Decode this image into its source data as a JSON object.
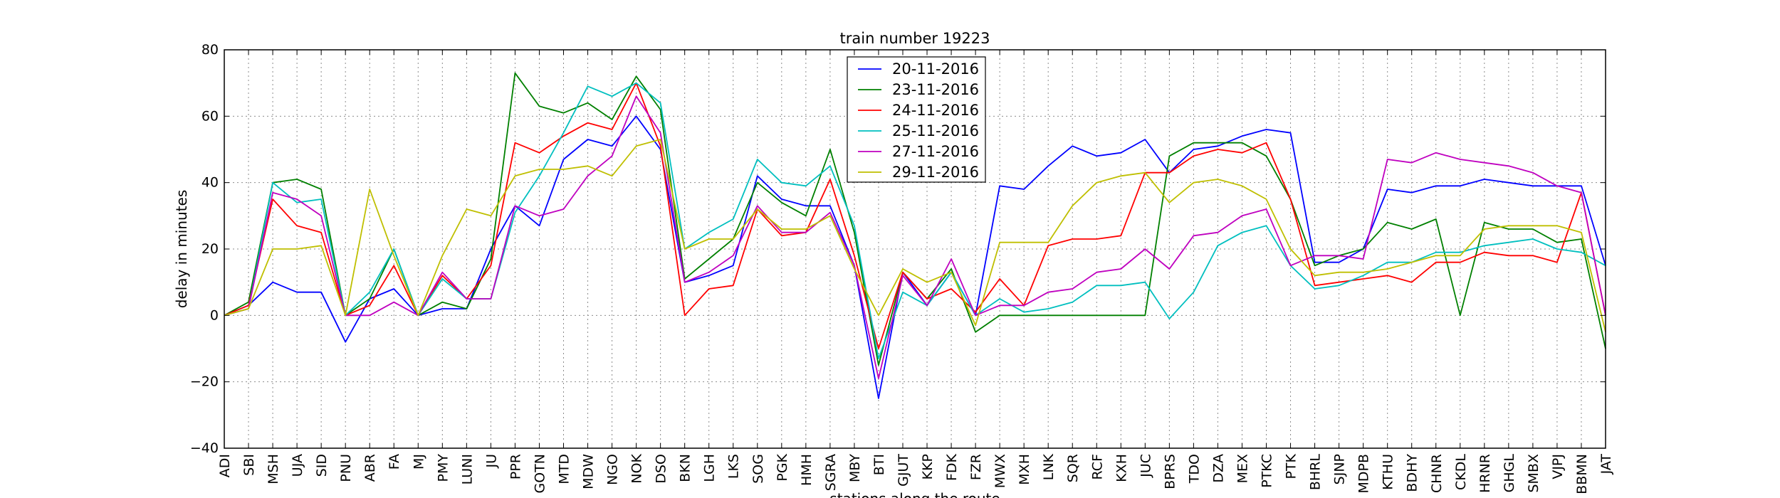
{
  "chart_data": {
    "type": "line",
    "title": "train number 19223",
    "xlabel": "stations along the route",
    "ylabel": "delay in minutes",
    "ylim": [
      -40,
      80
    ],
    "yticks": [
      -40,
      -20,
      0,
      20,
      40,
      60,
      80
    ],
    "ytick_labels": [
      "−40",
      "−20",
      "0",
      "20",
      "40",
      "60",
      "80"
    ],
    "grid": true,
    "legend_position": "top-center",
    "categories": [
      "ADI",
      "SBI",
      "MSH",
      "UJA",
      "SID",
      "PNU",
      "ABR",
      "FA",
      "MJ",
      "PMY",
      "LUNI",
      "JU",
      "PPR",
      "GOTN",
      "MTD",
      "MDW",
      "NGO",
      "NOK",
      "DSO",
      "BKN",
      "LGH",
      "LKS",
      "SOG",
      "PGK",
      "HMH",
      "SGRA",
      "MBY",
      "BTI",
      "GJUT",
      "KKP",
      "FDK",
      "FZR",
      "MWX",
      "MXH",
      "LNK",
      "SQR",
      "RCF",
      "KXH",
      "JUC",
      "BPRS",
      "TDO",
      "DZA",
      "MEX",
      "PTKC",
      "PTK",
      "BHRL",
      "SJNP",
      "MDPB",
      "KTHU",
      "BDHY",
      "CHNR",
      "CKDL",
      "HRNR",
      "GHGL",
      "SMBX",
      "VJPJ",
      "BBMN",
      "JAT"
    ],
    "series": [
      {
        "name": "20-11-2016",
        "color": "#0000ff",
        "values": [
          0,
          3,
          10,
          7,
          7,
          -8,
          5,
          8,
          0,
          2,
          2,
          20,
          33,
          27,
          47,
          53,
          51,
          60,
          50,
          10,
          12,
          15,
          42,
          35,
          33,
          33,
          15,
          -25,
          13,
          3,
          13,
          0,
          39,
          38,
          45,
          51,
          48,
          49,
          53,
          43,
          50,
          51,
          54,
          56,
          55,
          16,
          16,
          20,
          38,
          37,
          39,
          39,
          41,
          40,
          39,
          39,
          39,
          15
        ]
      },
      {
        "name": "23-11-2016",
        "color": "#008000",
        "values": [
          0,
          4,
          40,
          41,
          38,
          0,
          5,
          20,
          0,
          4,
          2,
          17,
          73,
          63,
          61,
          64,
          59,
          72,
          62,
          11,
          17,
          23,
          40,
          34,
          30,
          50,
          25,
          -15,
          13,
          5,
          14,
          -5,
          0,
          0,
          0,
          0,
          0,
          0,
          0,
          48,
          52,
          52,
          52,
          48,
          35,
          15,
          18,
          20,
          28,
          26,
          29,
          0,
          28,
          26,
          26,
          22,
          23,
          -10
        ]
      },
      {
        "name": "24-11-2016",
        "color": "#ff0000",
        "values": [
          0,
          3,
          35,
          27,
          25,
          0,
          3,
          15,
          0,
          12,
          5,
          15,
          52,
          49,
          54,
          58,
          56,
          70,
          51,
          0,
          8,
          9,
          32,
          24,
          25,
          41,
          18,
          -10,
          13,
          5,
          8,
          1,
          11,
          3,
          21,
          23,
          23,
          24,
          43,
          43,
          48,
          50,
          49,
          52,
          35,
          9,
          10,
          11,
          12,
          10,
          16,
          16,
          19,
          18,
          18,
          16,
          37,
          0
        ]
      },
      {
        "name": "25-11-2016",
        "color": "#00bfbf",
        "values": [
          0,
          2,
          40,
          34,
          35,
          0,
          7,
          20,
          0,
          11,
          5,
          5,
          31,
          42,
          55,
          69,
          66,
          70,
          64,
          20,
          25,
          29,
          47,
          40,
          39,
          45,
          27,
          -13,
          7,
          3,
          13,
          0,
          5,
          1,
          2,
          4,
          9,
          9,
          10,
          -1,
          7,
          21,
          25,
          27,
          15,
          8,
          9,
          12,
          16,
          16,
          19,
          19,
          21,
          22,
          23,
          20,
          19,
          15
        ]
      },
      {
        "name": "27-11-2016",
        "color": "#bf00bf",
        "values": [
          0,
          2,
          37,
          35,
          30,
          0,
          0,
          4,
          0,
          13,
          5,
          5,
          33,
          30,
          32,
          42,
          48,
          66,
          55,
          10,
          13,
          18,
          33,
          25,
          25,
          31,
          15,
          -19,
          12,
          3,
          17,
          0,
          3,
          3,
          7,
          8,
          13,
          14,
          20,
          14,
          24,
          25,
          30,
          32,
          15,
          18,
          18,
          17,
          47,
          46,
          49,
          47,
          46,
          45,
          43,
          39,
          37,
          0
        ]
      },
      {
        "name": "29-11-2016",
        "color": "#bfbf00",
        "values": [
          0,
          2,
          20,
          20,
          21,
          0,
          38,
          18,
          0,
          18,
          32,
          30,
          42,
          44,
          44,
          45,
          42,
          51,
          53,
          20,
          23,
          23,
          32,
          26,
          26,
          30,
          14,
          0,
          14,
          10,
          13,
          -3,
          22,
          22,
          22,
          33,
          40,
          42,
          43,
          34,
          40,
          41,
          39,
          35,
          20,
          12,
          13,
          13,
          14,
          16,
          18,
          18,
          26,
          27,
          27,
          27,
          25,
          -5
        ]
      }
    ]
  }
}
